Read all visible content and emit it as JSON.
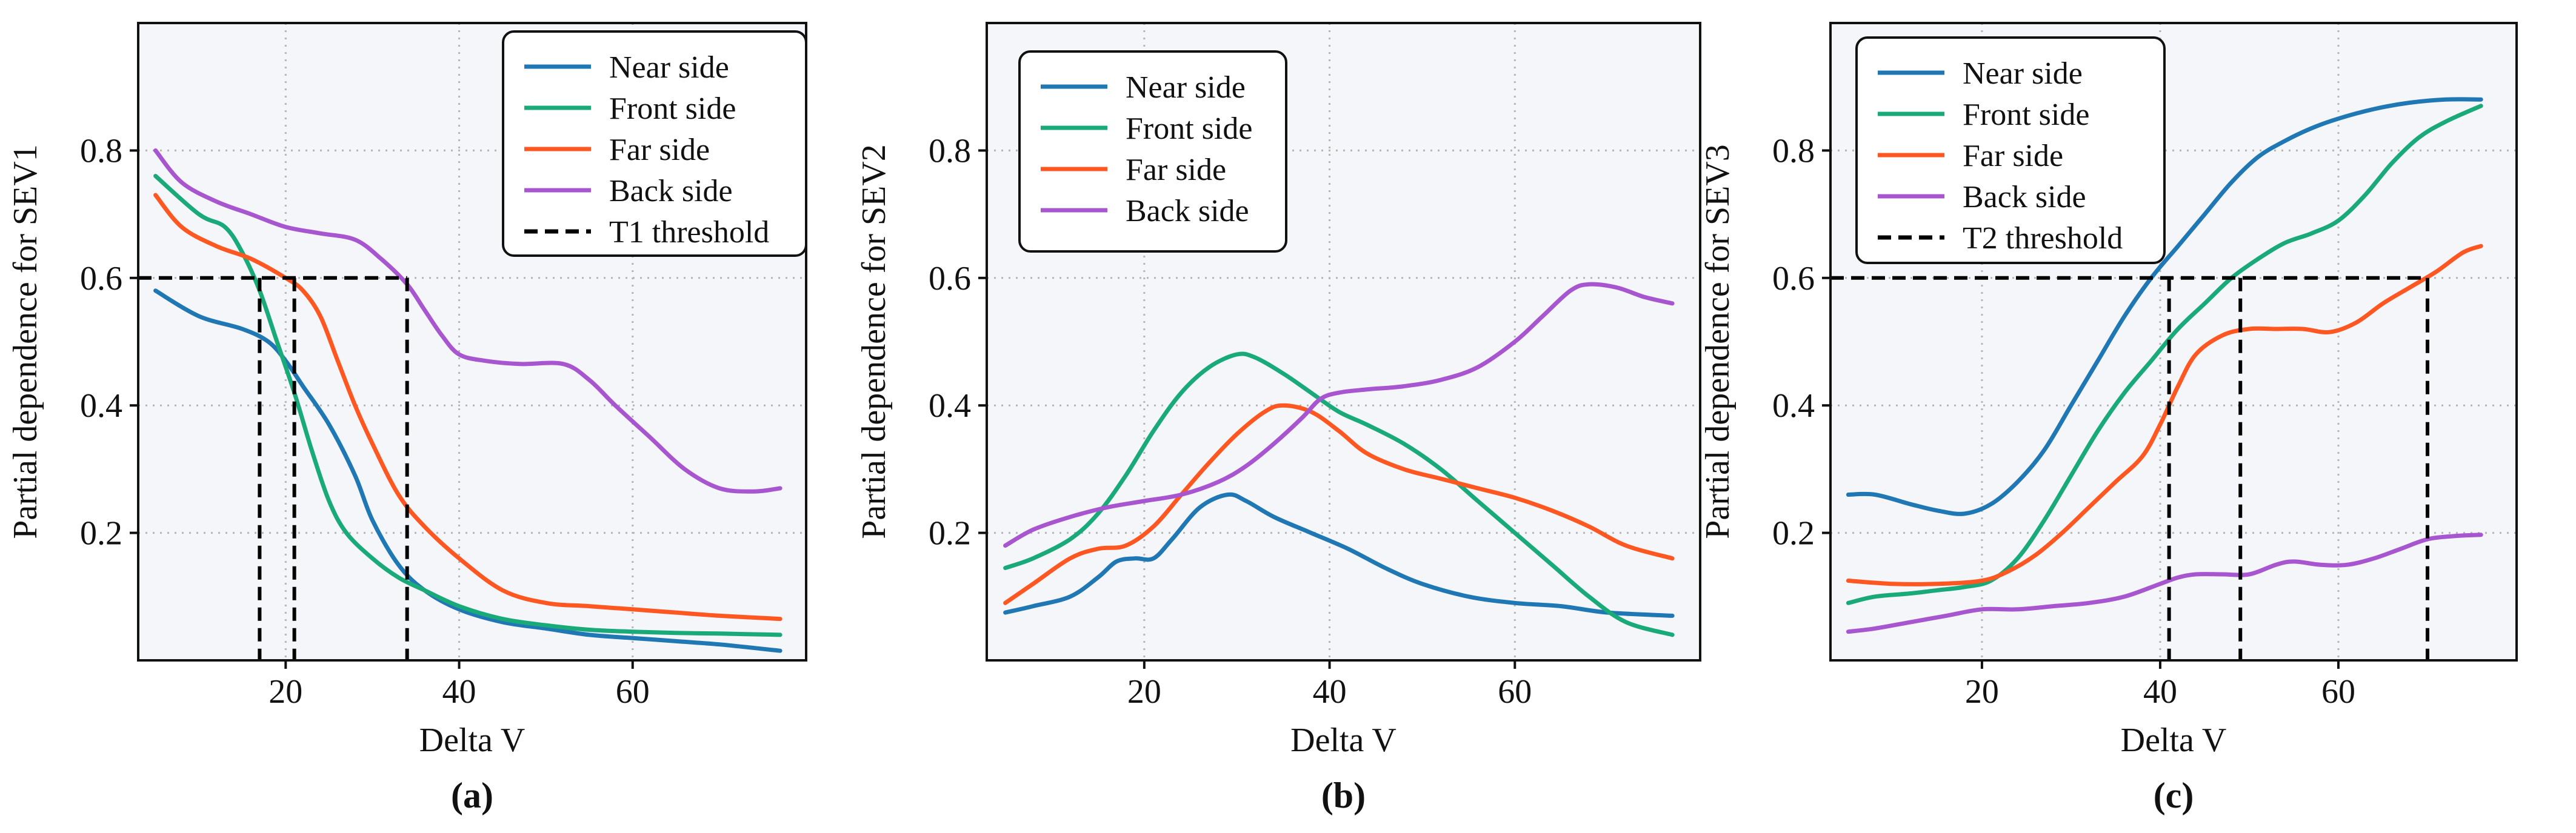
{
  "chart_data": [
    {
      "type": "line",
      "panel_label": "(a)",
      "xlabel": "Delta V",
      "ylabel": "Partial dependence for SEV1",
      "xlim": [
        3,
        80
      ],
      "ylim": [
        0,
        1.0
      ],
      "xticks": [
        20,
        40,
        60
      ],
      "yticks": [
        0.2,
        0.4,
        0.6,
        0.8
      ],
      "xtick_labels": [
        "20",
        "40",
        "60"
      ],
      "ytick_labels": [
        "0.2",
        "0.4",
        "0.6",
        "0.8"
      ],
      "grid": true,
      "legend_position": "top-right",
      "series": [
        {
          "name": "Near side",
          "color": "#1f77b4",
          "x": [
            5,
            10,
            15,
            18,
            20,
            22,
            25,
            28,
            30,
            33,
            36,
            40,
            45,
            50,
            55,
            60,
            65,
            70,
            77
          ],
          "y": [
            0.58,
            0.54,
            0.52,
            0.5,
            0.47,
            0.43,
            0.37,
            0.29,
            0.22,
            0.15,
            0.11,
            0.08,
            0.06,
            0.05,
            0.04,
            0.035,
            0.03,
            0.025,
            0.015
          ]
        },
        {
          "name": "Front side",
          "color": "#1aaa7a",
          "x": [
            5,
            10,
            13,
            15,
            17,
            19,
            21,
            23,
            25,
            27,
            30,
            33,
            36,
            40,
            45,
            50,
            55,
            60,
            65,
            70,
            77
          ],
          "y": [
            0.76,
            0.7,
            0.68,
            0.64,
            0.58,
            0.5,
            0.42,
            0.33,
            0.25,
            0.2,
            0.16,
            0.13,
            0.11,
            0.085,
            0.065,
            0.055,
            0.048,
            0.045,
            0.043,
            0.042,
            0.04
          ]
        },
        {
          "name": "Far side",
          "color": "#ff5722",
          "x": [
            5,
            8,
            12,
            16,
            20,
            22,
            24,
            26,
            28,
            30,
            33,
            36,
            40,
            45,
            50,
            55,
            60,
            65,
            70,
            77
          ],
          "y": [
            0.73,
            0.68,
            0.65,
            0.63,
            0.6,
            0.58,
            0.54,
            0.47,
            0.4,
            0.34,
            0.26,
            0.21,
            0.16,
            0.11,
            0.09,
            0.085,
            0.08,
            0.075,
            0.07,
            0.065
          ]
        },
        {
          "name": "Back side",
          "color": "#a855d0",
          "x": [
            5,
            8,
            12,
            16,
            20,
            24,
            28,
            31,
            34,
            36,
            38,
            40,
            43,
            47,
            52,
            55,
            58,
            62,
            66,
            70,
            74,
            77
          ],
          "y": [
            0.8,
            0.75,
            0.72,
            0.7,
            0.68,
            0.67,
            0.66,
            0.63,
            0.59,
            0.55,
            0.51,
            0.48,
            0.47,
            0.465,
            0.465,
            0.44,
            0.4,
            0.35,
            0.3,
            0.27,
            0.265,
            0.27
          ]
        }
      ],
      "threshold": {
        "name": "T1 threshold",
        "y": 0.6,
        "x_crossings": [
          17,
          21,
          34
        ]
      }
    },
    {
      "type": "line",
      "panel_label": "(b)",
      "xlabel": "Delta V",
      "ylabel": "Partial dependence for SEV2",
      "xlim": [
        3,
        80
      ],
      "ylim": [
        0,
        1.0
      ],
      "xticks": [
        20,
        40,
        60
      ],
      "yticks": [
        0.2,
        0.4,
        0.6,
        0.8
      ],
      "xtick_labels": [
        "20",
        "40",
        "60"
      ],
      "ytick_labels": [
        "0.2",
        "0.4",
        "0.6",
        "0.8"
      ],
      "grid": true,
      "legend_position": "top-left",
      "series": [
        {
          "name": "Near side",
          "color": "#1f77b4",
          "x": [
            5,
            8,
            12,
            15,
            17,
            19,
            21,
            23,
            26,
            29,
            31,
            34,
            38,
            42,
            46,
            50,
            55,
            60,
            65,
            70,
            77
          ],
          "y": [
            0.075,
            0.085,
            0.1,
            0.13,
            0.155,
            0.16,
            0.16,
            0.19,
            0.24,
            0.26,
            0.25,
            0.225,
            0.2,
            0.175,
            0.145,
            0.12,
            0.1,
            0.09,
            0.085,
            0.075,
            0.07
          ]
        },
        {
          "name": "Front side",
          "color": "#1aaa7a",
          "x": [
            5,
            8,
            12,
            15,
            18,
            21,
            24,
            27,
            30,
            32,
            35,
            38,
            41,
            44,
            48,
            52,
            56,
            60,
            64,
            68,
            72,
            77
          ],
          "y": [
            0.145,
            0.16,
            0.19,
            0.23,
            0.29,
            0.36,
            0.42,
            0.46,
            0.48,
            0.475,
            0.45,
            0.42,
            0.39,
            0.37,
            0.34,
            0.3,
            0.25,
            0.2,
            0.15,
            0.1,
            0.06,
            0.04
          ]
        },
        {
          "name": "Far side",
          "color": "#ff5722",
          "x": [
            5,
            8,
            12,
            15,
            18,
            21,
            24,
            27,
            30,
            33,
            35,
            38,
            41,
            44,
            48,
            52,
            56,
            60,
            64,
            68,
            72,
            77
          ],
          "y": [
            0.09,
            0.12,
            0.16,
            0.175,
            0.18,
            0.21,
            0.26,
            0.31,
            0.355,
            0.39,
            0.4,
            0.39,
            0.36,
            0.325,
            0.3,
            0.285,
            0.27,
            0.255,
            0.235,
            0.21,
            0.18,
            0.16
          ]
        },
        {
          "name": "Back side",
          "color": "#a855d0",
          "x": [
            5,
            8,
            12,
            16,
            20,
            24,
            28,
            31,
            34,
            37,
            39,
            41,
            44,
            48,
            52,
            56,
            60,
            63,
            66,
            68,
            71,
            74,
            77
          ],
          "y": [
            0.18,
            0.205,
            0.225,
            0.24,
            0.25,
            0.26,
            0.28,
            0.305,
            0.34,
            0.38,
            0.41,
            0.42,
            0.425,
            0.43,
            0.44,
            0.46,
            0.5,
            0.54,
            0.58,
            0.59,
            0.585,
            0.57,
            0.56
          ]
        }
      ]
    },
    {
      "type": "line",
      "panel_label": "(c)",
      "xlabel": "Delta V",
      "ylabel": "Partial dependence for SEV3",
      "xlim": [
        3,
        80
      ],
      "ylim": [
        0,
        1.0
      ],
      "xticks": [
        20,
        40,
        60
      ],
      "yticks": [
        0.2,
        0.4,
        0.6,
        0.8
      ],
      "xtick_labels": [
        "20",
        "40",
        "60"
      ],
      "ytick_labels": [
        "0.2",
        "0.4",
        "0.6",
        "0.8"
      ],
      "grid": true,
      "legend_position": "top-left",
      "series": [
        {
          "name": "Near side",
          "color": "#1f77b4",
          "x": [
            5,
            8,
            12,
            15,
            18,
            21,
            24,
            27,
            30,
            33,
            36,
            39,
            42,
            45,
            48,
            51,
            54,
            57,
            60,
            64,
            68,
            72,
            76
          ],
          "y": [
            0.26,
            0.26,
            0.245,
            0.235,
            0.23,
            0.245,
            0.28,
            0.33,
            0.4,
            0.47,
            0.54,
            0.6,
            0.65,
            0.7,
            0.75,
            0.79,
            0.815,
            0.835,
            0.85,
            0.865,
            0.875,
            0.88,
            0.88
          ]
        },
        {
          "name": "Front side",
          "color": "#1aaa7a",
          "x": [
            5,
            8,
            12,
            15,
            18,
            21,
            24,
            27,
            30,
            33,
            36,
            39,
            42,
            45,
            48,
            51,
            54,
            57,
            60,
            63,
            66,
            69,
            72,
            76
          ],
          "y": [
            0.09,
            0.1,
            0.105,
            0.11,
            0.115,
            0.125,
            0.16,
            0.22,
            0.29,
            0.36,
            0.42,
            0.47,
            0.52,
            0.56,
            0.6,
            0.63,
            0.655,
            0.67,
            0.69,
            0.73,
            0.78,
            0.82,
            0.845,
            0.87
          ]
        },
        {
          "name": "Far side",
          "color": "#ff5722",
          "x": [
            5,
            10,
            15,
            20,
            23,
            26,
            29,
            32,
            35,
            38,
            40,
            42,
            44,
            47,
            50,
            53,
            56,
            59,
            62,
            65,
            68,
            71,
            74,
            76
          ],
          "y": [
            0.125,
            0.12,
            0.12,
            0.125,
            0.14,
            0.165,
            0.2,
            0.24,
            0.28,
            0.32,
            0.37,
            0.43,
            0.48,
            0.51,
            0.52,
            0.52,
            0.52,
            0.515,
            0.53,
            0.56,
            0.585,
            0.61,
            0.64,
            0.65
          ]
        },
        {
          "name": "Back side",
          "color": "#a855d0",
          "x": [
            5,
            8,
            12,
            16,
            20,
            24,
            28,
            32,
            36,
            40,
            42,
            44,
            47,
            50,
            53,
            55,
            58,
            61,
            64,
            67,
            70,
            73,
            76
          ],
          "y": [
            0.045,
            0.05,
            0.06,
            0.07,
            0.08,
            0.08,
            0.085,
            0.09,
            0.1,
            0.12,
            0.13,
            0.135,
            0.135,
            0.135,
            0.15,
            0.155,
            0.15,
            0.15,
            0.16,
            0.175,
            0.19,
            0.195,
            0.197
          ]
        }
      ],
      "threshold": {
        "name": "T2 threshold",
        "y": 0.6,
        "x_crossings": [
          41,
          49,
          70
        ]
      }
    }
  ]
}
